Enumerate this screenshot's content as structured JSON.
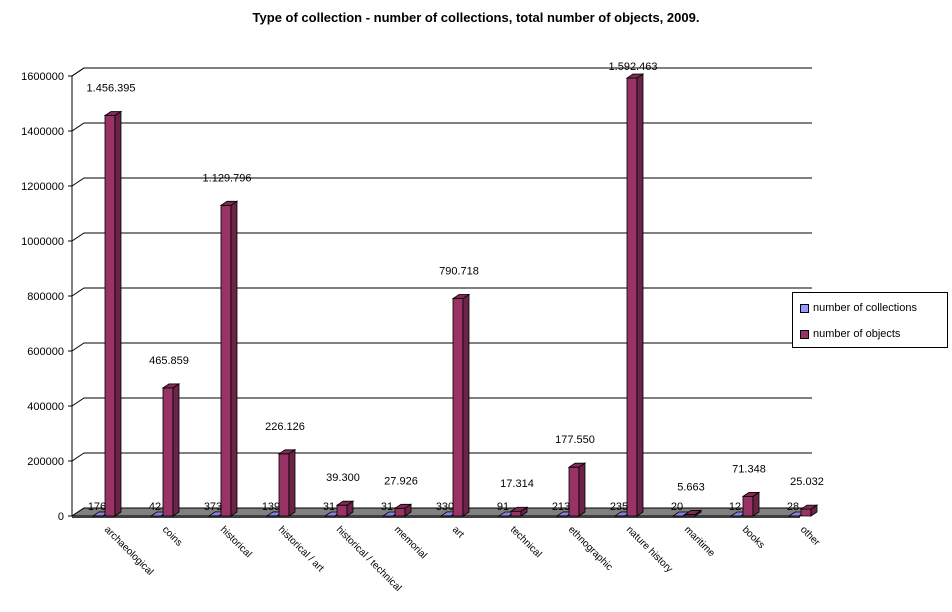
{
  "chart_data": {
    "type": "bar",
    "title": "Type of collection - number of collections, total number of objects, 2009.",
    "categories": [
      "archaeological",
      "coins",
      "historical",
      "historical / art",
      "historical / technical",
      "memorial",
      "art",
      "technical",
      "ethnographic",
      "nature history",
      "maritime",
      "books",
      "other"
    ],
    "series": [
      {
        "name": "number of collections",
        "values": [
          176,
          42,
          373,
          139,
          31,
          31,
          330,
          91,
          213,
          235,
          20,
          12,
          28
        ],
        "labels": [
          "176",
          "42",
          "373",
          "139",
          "31",
          "31",
          "330",
          "91",
          "213",
          "235",
          "20",
          "12",
          "28"
        ],
        "color": "#9999ff"
      },
      {
        "name": "number of objects",
        "values": [
          1456395,
          465859,
          1129796,
          226126,
          39300,
          27926,
          790718,
          17314,
          177550,
          1592463,
          5663,
          71348,
          25032
        ],
        "labels": [
          "1.456.395",
          "465.859",
          "1.129.796",
          "226.126",
          "39.300",
          "27.926",
          "790.718",
          "17.314",
          "177.550",
          "1.592.463",
          "5.663",
          "71.348",
          "25.032"
        ],
        "color": "#993366"
      }
    ],
    "ylim": [
      0,
      1600000
    ],
    "yticks": [
      "0",
      "200000",
      "400000",
      "600000",
      "800000",
      "1000000",
      "1200000",
      "1400000",
      "1600000"
    ],
    "grid": true,
    "legend_position": "right"
  }
}
